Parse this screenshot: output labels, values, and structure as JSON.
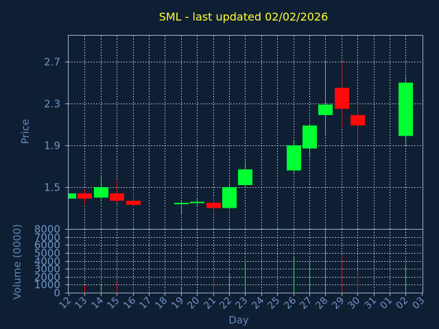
{
  "chart_data": {
    "type": "candlestick",
    "title": "SML - last updated 02/02/2026",
    "xlabel": "Day",
    "price_panel": {
      "ylabel": "Price",
      "yticks": [
        "1.5",
        "1.9",
        "2.3",
        "2.7"
      ],
      "ylim": [
        1.1,
        2.95
      ]
    },
    "volume_panel": {
      "ylabel": "Volume (0000)",
      "yticks": [
        "0",
        "1000",
        "2000",
        "3000",
        "4000",
        "5000",
        "6000",
        "7000",
        "8000"
      ],
      "ylim": [
        0,
        8000
      ]
    },
    "x_ticks": [
      "12",
      "13",
      "14",
      "15",
      "16",
      "17",
      "18",
      "19",
      "20",
      "21",
      "22",
      "23",
      "24",
      "25",
      "26",
      "27",
      "28",
      "29",
      "30",
      "31",
      "01",
      "02",
      "03"
    ],
    "candles": [
      {
        "day": "12",
        "open": 1.39,
        "high": 1.44,
        "low": 1.39,
        "close": 1.44,
        "volume": 0
      },
      {
        "day": "13",
        "open": 1.44,
        "high": 1.48,
        "low": 1.33,
        "close": 1.39,
        "volume": 900
      },
      {
        "day": "14",
        "open": 1.4,
        "high": 1.6,
        "low": 1.38,
        "close": 1.5,
        "volume": 1100
      },
      {
        "day": "15",
        "open": 1.44,
        "high": 1.56,
        "low": 1.35,
        "close": 1.37,
        "volume": 1300
      },
      {
        "day": "16",
        "open": 1.37,
        "high": 1.45,
        "low": 1.31,
        "close": 1.33,
        "volume": 1200
      },
      {
        "day": "19",
        "open": 1.35,
        "high": 1.37,
        "low": 1.23,
        "close": 1.35,
        "volume": 800
      },
      {
        "day": "20",
        "open": 1.35,
        "high": 1.4,
        "low": 1.32,
        "close": 1.36,
        "volume": 400
      },
      {
        "day": "21",
        "open": 1.35,
        "high": 1.4,
        "low": 1.25,
        "close": 1.3,
        "volume": 2400
      },
      {
        "day": "22",
        "open": 1.3,
        "high": 1.54,
        "low": 1.29,
        "close": 1.5,
        "volume": 2300
      },
      {
        "day": "23",
        "open": 1.52,
        "high": 1.75,
        "low": 1.5,
        "close": 1.67,
        "volume": 3900
      },
      {
        "day": "26",
        "open": 1.66,
        "high": 1.94,
        "low": 1.64,
        "close": 1.9,
        "volume": 4400
      },
      {
        "day": "27",
        "open": 1.87,
        "high": 2.1,
        "low": 1.78,
        "close": 2.09,
        "volume": 3800
      },
      {
        "day": "28",
        "open": 2.19,
        "high": 2.7,
        "low": 1.99,
        "close": 2.29,
        "volume": 7900
      },
      {
        "day": "29",
        "open": 2.45,
        "high": 2.7,
        "low": 2.07,
        "close": 2.25,
        "volume": 4600
      },
      {
        "day": "30",
        "open": 2.19,
        "high": 2.3,
        "low": 1.9,
        "close": 2.09,
        "volume": 2400
      },
      {
        "day": "02",
        "open": 1.99,
        "high": 2.56,
        "low": 1.9,
        "close": 2.5,
        "volume": 3300
      }
    ],
    "colors": {
      "up": "#00ff33",
      "down": "#ff0a0a",
      "background": "#0f1f33"
    }
  }
}
